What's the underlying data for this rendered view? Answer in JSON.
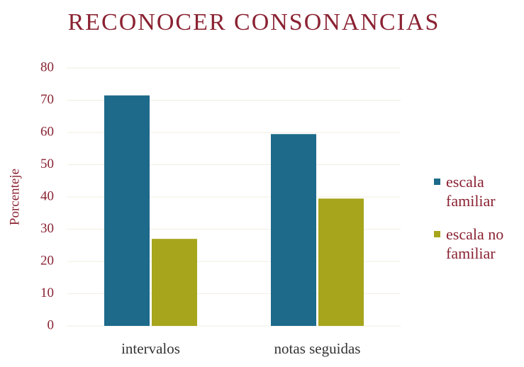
{
  "chart_data": {
    "type": "bar",
    "title": "RECONOCER CONSONANCIAS",
    "y_label": "Porcenteje",
    "categories": [
      "intervalos",
      "notas seguidas"
    ],
    "series": [
      {
        "name": "escala familiar",
        "color": "#1d6a8a",
        "values": [
          71.5,
          59.5
        ]
      },
      {
        "name": "escala no familiar",
        "color": "#a7a51c",
        "values": [
          27,
          39.5
        ]
      }
    ],
    "ylim": [
      0,
      80
    ],
    "yticks": [
      0,
      10,
      20,
      30,
      40,
      50,
      60,
      70,
      80
    ],
    "grid": true,
    "legend": "right"
  }
}
